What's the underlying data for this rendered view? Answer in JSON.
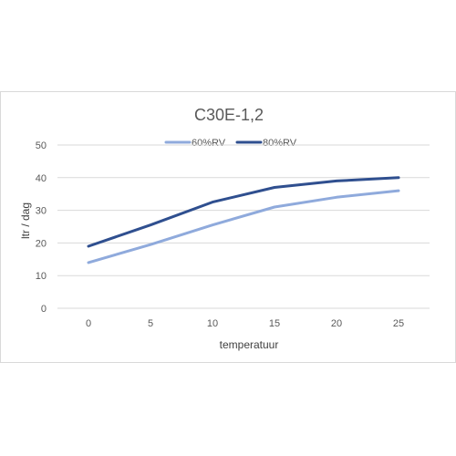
{
  "chart_data": {
    "type": "line",
    "title": "C30E-1,2",
    "xlabel": "temperatuur",
    "ylabel": "ltr / dag",
    "categories": [
      "0",
      "5",
      "10",
      "15",
      "20",
      "25"
    ],
    "ylim": [
      0,
      50
    ],
    "yticks": [
      "0",
      "10",
      "20",
      "30",
      "40",
      "50"
    ],
    "grid": true,
    "legend_position": "top",
    "series": [
      {
        "name": "60%RV",
        "color": "#8faadc",
        "values": [
          14,
          19.5,
          25.5,
          31,
          34,
          36
        ]
      },
      {
        "name": "80%RV",
        "color": "#2f4f8f",
        "values": [
          19,
          25.5,
          32.5,
          37,
          39,
          40
        ]
      }
    ]
  }
}
